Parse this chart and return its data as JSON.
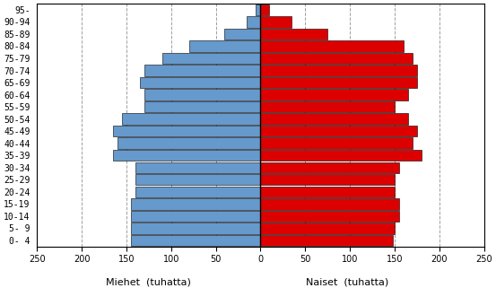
{
  "age_groups": [
    "0- 4",
    "5- 9",
    "10-14",
    "15-19",
    "20-24",
    "25-29",
    "30-34",
    "35-39",
    "40-44",
    "45-49",
    "50-54",
    "55-59",
    "60-64",
    "65-69",
    "70-74",
    "75-79",
    "80-84",
    "85-89",
    "90-94",
    "95-"
  ],
  "men": [
    145,
    145,
    145,
    145,
    140,
    140,
    140,
    165,
    160,
    165,
    155,
    130,
    130,
    135,
    130,
    110,
    80,
    40,
    15,
    5
  ],
  "women": [
    148,
    150,
    155,
    155,
    150,
    150,
    155,
    180,
    170,
    175,
    165,
    150,
    165,
    175,
    175,
    170,
    160,
    75,
    35,
    10
  ],
  "xlim": 250,
  "xlabel_men": "Miehet  (tuhatta)",
  "xlabel_women": "Naiset  (tuhatta)",
  "bar_color_men": "#6699cc",
  "bar_color_women": "#dd0000",
  "bar_edgecolor": "#000000",
  "background_color": "#ffffff",
  "grid_color": "#888888",
  "fontsize_tick": 7,
  "fontsize_xlabel": 8
}
